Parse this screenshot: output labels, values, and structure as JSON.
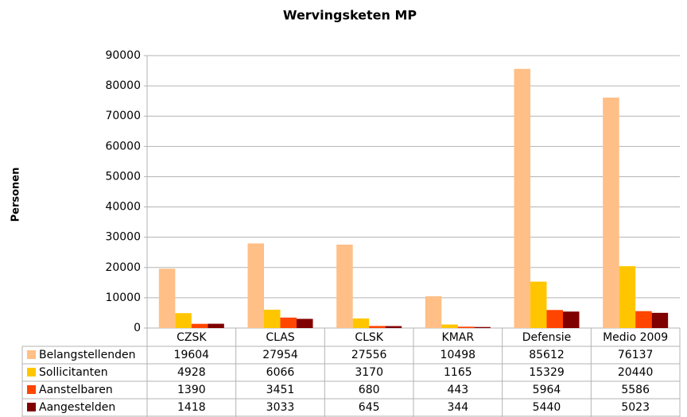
{
  "chart_data": {
    "type": "bar",
    "title": "Wervingsketen MP",
    "y_label": "Personen",
    "categories": [
      "CZSK",
      "CLAS",
      "CLSK",
      "KMAR",
      "Defensie",
      "Medio 2009"
    ],
    "series": [
      {
        "name": "Belangstellenden",
        "color": "#ffbf86",
        "values": [
          19604,
          27954,
          27556,
          10498,
          85612,
          76137
        ]
      },
      {
        "name": "Sollicitanten",
        "color": "#ffc600",
        "values": [
          4928,
          6066,
          3170,
          1165,
          15329,
          20440
        ]
      },
      {
        "name": "Aanstelbaren",
        "color": "#ff4500",
        "values": [
          1390,
          3451,
          680,
          443,
          5964,
          5586
        ]
      },
      {
        "name": "Aangestelden",
        "color": "#800000",
        "values": [
          1418,
          3033,
          645,
          344,
          5440,
          5023
        ]
      }
    ],
    "ylim": [
      0,
      90000
    ],
    "yticks": [
      0,
      10000,
      20000,
      30000,
      40000,
      50000,
      60000,
      70000,
      80000,
      90000
    ],
    "grid": true
  }
}
